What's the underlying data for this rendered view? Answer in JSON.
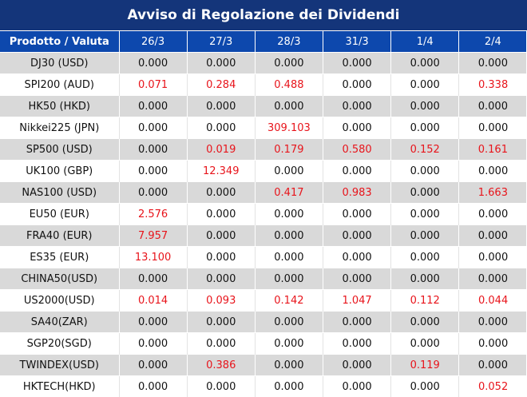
{
  "title": "Avviso di Regolazione dei Dividendi",
  "header": {
    "product_label": "Prodotto / Valuta",
    "dates": [
      "26/3",
      "27/3",
      "28/3",
      "31/3",
      "1/4",
      "2/4"
    ]
  },
  "colors": {
    "title_bg": "#14357a",
    "header_bg": "#0d48ad",
    "stripe": "#d9d9d9",
    "highlight": "#e8141b"
  },
  "rows": [
    {
      "product": "DJ30 (USD)",
      "values": [
        "0.000",
        "0.000",
        "0.000",
        "0.000",
        "0.000",
        "0.000"
      ]
    },
    {
      "product": "SPI200 (AUD)",
      "values": [
        "0.071",
        "0.284",
        "0.488",
        "0.000",
        "0.000",
        "0.338"
      ]
    },
    {
      "product": "HK50 (HKD)",
      "values": [
        "0.000",
        "0.000",
        "0.000",
        "0.000",
        "0.000",
        "0.000"
      ]
    },
    {
      "product": "Nikkei225 (JPN)",
      "values": [
        "0.000",
        "0.000",
        "309.103",
        "0.000",
        "0.000",
        "0.000"
      ]
    },
    {
      "product": "SP500 (USD)",
      "values": [
        "0.000",
        "0.019",
        "0.179",
        "0.580",
        "0.152",
        "0.161"
      ]
    },
    {
      "product": "UK100 (GBP)",
      "values": [
        "0.000",
        "12.349",
        "0.000",
        "0.000",
        "0.000",
        "0.000"
      ]
    },
    {
      "product": "NAS100 (USD)",
      "values": [
        "0.000",
        "0.000",
        "0.417",
        "0.983",
        "0.000",
        "1.663"
      ]
    },
    {
      "product": "EU50 (EUR)",
      "values": [
        "2.576",
        "0.000",
        "0.000",
        "0.000",
        "0.000",
        "0.000"
      ]
    },
    {
      "product": "FRA40 (EUR)",
      "values": [
        "7.957",
        "0.000",
        "0.000",
        "0.000",
        "0.000",
        "0.000"
      ]
    },
    {
      "product": "ES35 (EUR)",
      "values": [
        "13.100",
        "0.000",
        "0.000",
        "0.000",
        "0.000",
        "0.000"
      ]
    },
    {
      "product": "CHINA50(USD)",
      "values": [
        "0.000",
        "0.000",
        "0.000",
        "0.000",
        "0.000",
        "0.000"
      ]
    },
    {
      "product": "US2000(USD)",
      "values": [
        "0.014",
        "0.093",
        "0.142",
        "1.047",
        "0.112",
        "0.044"
      ]
    },
    {
      "product": "SA40(ZAR)",
      "values": [
        "0.000",
        "0.000",
        "0.000",
        "0.000",
        "0.000",
        "0.000"
      ]
    },
    {
      "product": "SGP20(SGD)",
      "values": [
        "0.000",
        "0.000",
        "0.000",
        "0.000",
        "0.000",
        "0.000"
      ]
    },
    {
      "product": "TWINDEX(USD)",
      "values": [
        "0.000",
        "0.386",
        "0.000",
        "0.000",
        "0.119",
        "0.000"
      ]
    },
    {
      "product": "HKTECH(HKD)",
      "values": [
        "0.000",
        "0.000",
        "0.000",
        "0.000",
        "0.000",
        "0.052"
      ]
    }
  ]
}
